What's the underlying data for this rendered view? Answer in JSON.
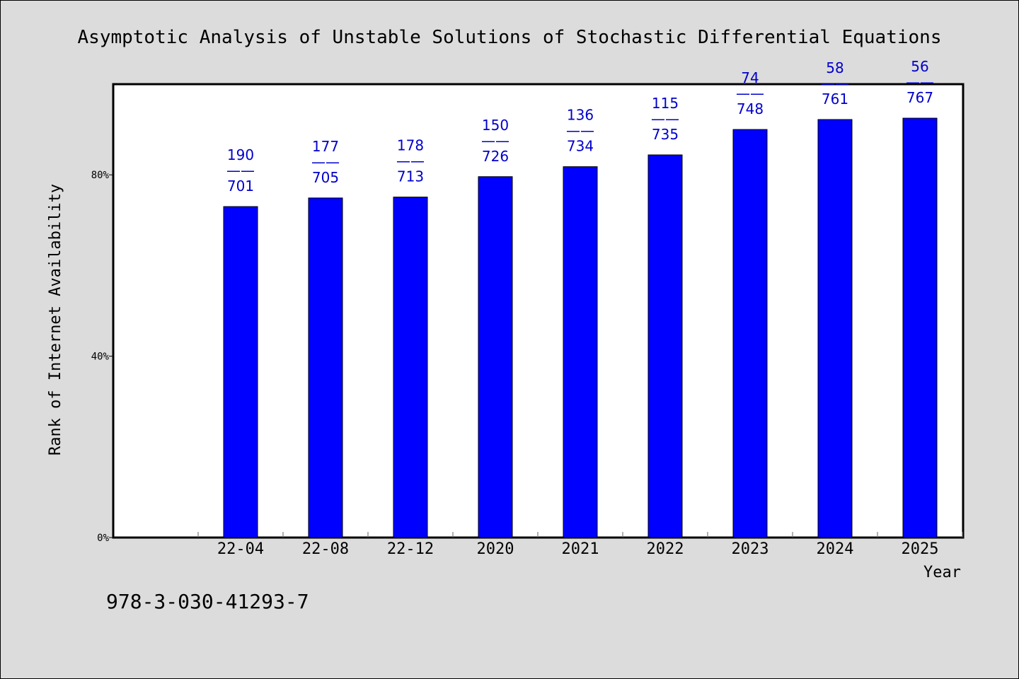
{
  "chart_data": {
    "type": "bar",
    "title": "Asymptotic Analysis of Unstable Solutions of Stochastic Differential Equations",
    "xlabel": "Year",
    "ylabel": "Rank of Internet Availability",
    "ylim": [
      0,
      100
    ],
    "yticks": [
      {
        "value": 0,
        "label": "0%"
      },
      {
        "value": 40,
        "label": "40%"
      },
      {
        "value": 80,
        "label": "80%"
      }
    ],
    "categories": [
      "22-04",
      "22-08",
      "22-12",
      "2020",
      "2021",
      "2022",
      "2023",
      "2024",
      "2025"
    ],
    "values": [
      73.0,
      74.9,
      75.1,
      79.6,
      81.8,
      84.4,
      90.0,
      92.2,
      92.5
    ],
    "bar_labels": [
      {
        "top": "190",
        "sep": "——",
        "bottom": "701"
      },
      {
        "top": "177",
        "sep": "——",
        "bottom": "705"
      },
      {
        "top": "178",
        "sep": "——",
        "bottom": "713"
      },
      {
        "top": "150",
        "sep": "——",
        "bottom": "726"
      },
      {
        "top": "136",
        "sep": "——",
        "bottom": "734"
      },
      {
        "top": "115",
        "sep": "——",
        "bottom": "735"
      },
      {
        "top": "74",
        "sep": "——",
        "bottom": "748"
      },
      {
        "top": "58",
        "sep": "——",
        "bottom": "761"
      },
      {
        "top": "56",
        "sep": "——",
        "bottom": "767"
      }
    ],
    "grid": false,
    "bar_color": "#0000ff",
    "label_color": "#0000cc",
    "background_color": "#dcdcdc"
  },
  "footer": {
    "isbn": "978-3-030-41293-7"
  }
}
